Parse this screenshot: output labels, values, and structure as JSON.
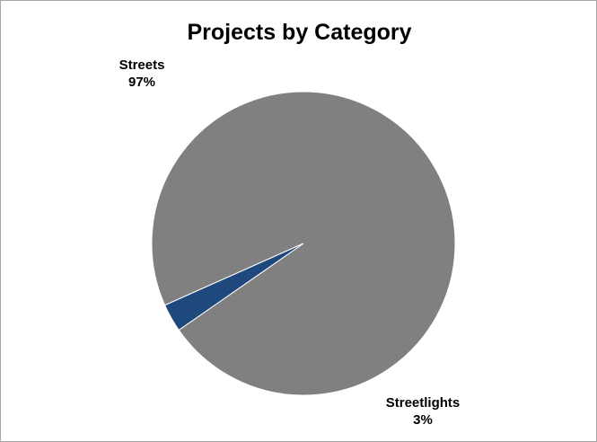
{
  "chart_data": {
    "type": "pie",
    "title": "Projects by Category",
    "slices": [
      {
        "label": "Streets",
        "value": 97,
        "value_label": "97%",
        "color": "#808080"
      },
      {
        "label": "Streetlights",
        "value": 3,
        "value_label": "3%",
        "color": "#1f497d"
      }
    ],
    "legend": "none"
  }
}
